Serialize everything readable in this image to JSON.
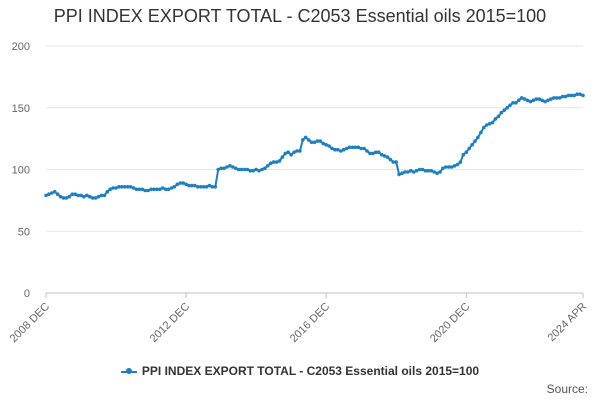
{
  "chart_data": {
    "type": "line",
    "title": "PPI INDEX EXPORT TOTAL - C2053 Essential oils 2015=100",
    "xlabel": "",
    "ylabel": "",
    "ylim": [
      0,
      200
    ],
    "y_ticks": [
      0,
      50,
      100,
      150,
      200
    ],
    "x_ticks": [
      "2008 DEC",
      "2012 DEC",
      "2016 DEC",
      "2020 DEC",
      "2024 APR"
    ],
    "x_range": [
      "2008-12",
      "2024-04"
    ],
    "grid": true,
    "legend_position": "bottom",
    "series": [
      {
        "name": "PPI INDEX EXPORT TOTAL - C2053 Essential oils 2015=100",
        "color": "#1f7fbf",
        "points": [
          [
            "2008-12",
            79
          ],
          [
            "2009-01",
            80
          ],
          [
            "2009-02",
            81
          ],
          [
            "2009-03",
            82
          ],
          [
            "2009-04",
            80
          ],
          [
            "2009-05",
            78
          ],
          [
            "2009-06",
            77
          ],
          [
            "2009-07",
            77
          ],
          [
            "2009-08",
            78
          ],
          [
            "2009-09",
            80
          ],
          [
            "2009-10",
            80
          ],
          [
            "2009-11",
            79
          ],
          [
            "2009-12",
            79
          ],
          [
            "2010-01",
            78
          ],
          [
            "2010-02",
            79
          ],
          [
            "2010-03",
            78
          ],
          [
            "2010-04",
            77
          ],
          [
            "2010-05",
            77
          ],
          [
            "2010-06",
            78
          ],
          [
            "2010-07",
            79
          ],
          [
            "2010-08",
            79
          ],
          [
            "2010-09",
            82
          ],
          [
            "2010-10",
            84
          ],
          [
            "2010-11",
            85
          ],
          [
            "2010-12",
            85
          ],
          [
            "2011-01",
            86
          ],
          [
            "2011-02",
            86
          ],
          [
            "2011-03",
            86
          ],
          [
            "2011-04",
            86
          ],
          [
            "2011-05",
            86
          ],
          [
            "2011-06",
            85
          ],
          [
            "2011-07",
            84
          ],
          [
            "2011-08",
            84
          ],
          [
            "2011-09",
            84
          ],
          [
            "2011-10",
            83
          ],
          [
            "2011-11",
            83
          ],
          [
            "2011-12",
            84
          ],
          [
            "2012-01",
            84
          ],
          [
            "2012-02",
            84
          ],
          [
            "2012-03",
            84
          ],
          [
            "2012-04",
            85
          ],
          [
            "2012-05",
            84
          ],
          [
            "2012-06",
            84
          ],
          [
            "2012-07",
            85
          ],
          [
            "2012-08",
            86
          ],
          [
            "2012-09",
            88
          ],
          [
            "2012-10",
            89
          ],
          [
            "2012-11",
            89
          ],
          [
            "2012-12",
            88
          ],
          [
            "2013-01",
            87
          ],
          [
            "2013-02",
            87
          ],
          [
            "2013-03",
            87
          ],
          [
            "2013-04",
            86
          ],
          [
            "2013-05",
            86
          ],
          [
            "2013-06",
            86
          ],
          [
            "2013-07",
            86
          ],
          [
            "2013-08",
            87
          ],
          [
            "2013-09",
            86
          ],
          [
            "2013-10",
            86
          ],
          [
            "2013-11",
            100
          ],
          [
            "2013-12",
            101
          ],
          [
            "2014-01",
            101
          ],
          [
            "2014-02",
            102
          ],
          [
            "2014-03",
            103
          ],
          [
            "2014-04",
            102
          ],
          [
            "2014-05",
            101
          ],
          [
            "2014-06",
            100
          ],
          [
            "2014-07",
            100
          ],
          [
            "2014-08",
            100
          ],
          [
            "2014-09",
            100
          ],
          [
            "2014-10",
            99
          ],
          [
            "2014-11",
            99
          ],
          [
            "2014-12",
            100
          ],
          [
            "2015-01",
            99
          ],
          [
            "2015-02",
            100
          ],
          [
            "2015-03",
            101
          ],
          [
            "2015-04",
            103
          ],
          [
            "2015-05",
            105
          ],
          [
            "2015-06",
            106
          ],
          [
            "2015-07",
            106
          ],
          [
            "2015-08",
            107
          ],
          [
            "2015-09",
            110
          ],
          [
            "2015-10",
            113
          ],
          [
            "2015-11",
            114
          ],
          [
            "2015-12",
            112
          ],
          [
            "2016-01",
            114
          ],
          [
            "2016-02",
            115
          ],
          [
            "2016-03",
            115
          ],
          [
            "2016-04",
            124
          ],
          [
            "2016-05",
            126
          ],
          [
            "2016-06",
            124
          ],
          [
            "2016-07",
            122
          ],
          [
            "2016-08",
            122
          ],
          [
            "2016-09",
            123
          ],
          [
            "2016-10",
            123
          ],
          [
            "2016-11",
            121
          ],
          [
            "2016-12",
            120
          ],
          [
            "2017-01",
            119
          ],
          [
            "2017-02",
            117
          ],
          [
            "2017-03",
            116
          ],
          [
            "2017-04",
            116
          ],
          [
            "2017-05",
            115
          ],
          [
            "2017-06",
            116
          ],
          [
            "2017-07",
            117
          ],
          [
            "2017-08",
            118
          ],
          [
            "2017-09",
            118
          ],
          [
            "2017-10",
            118
          ],
          [
            "2017-11",
            118
          ],
          [
            "2017-12",
            117
          ],
          [
            "2018-01",
            117
          ],
          [
            "2018-02",
            115
          ],
          [
            "2018-03",
            113
          ],
          [
            "2018-04",
            113
          ],
          [
            "2018-05",
            114
          ],
          [
            "2018-06",
            114
          ],
          [
            "2018-07",
            112
          ],
          [
            "2018-08",
            111
          ],
          [
            "2018-09",
            110
          ],
          [
            "2018-10",
            108
          ],
          [
            "2018-11",
            106
          ],
          [
            "2018-12",
            106
          ],
          [
            "2019-01",
            96
          ],
          [
            "2019-02",
            97
          ],
          [
            "2019-03",
            98
          ],
          [
            "2019-04",
            98
          ],
          [
            "2019-05",
            99
          ],
          [
            "2019-06",
            98
          ],
          [
            "2019-07",
            99
          ],
          [
            "2019-08",
            100
          ],
          [
            "2019-09",
            100
          ],
          [
            "2019-10",
            99
          ],
          [
            "2019-11",
            99
          ],
          [
            "2019-12",
            99
          ],
          [
            "2020-01",
            98
          ],
          [
            "2020-02",
            97
          ],
          [
            "2020-03",
            98
          ],
          [
            "2020-04",
            101
          ],
          [
            "2020-05",
            102
          ],
          [
            "2020-06",
            102
          ],
          [
            "2020-07",
            102
          ],
          [
            "2020-08",
            103
          ],
          [
            "2020-09",
            104
          ],
          [
            "2020-10",
            106
          ],
          [
            "2020-11",
            112
          ],
          [
            "2020-12",
            114
          ],
          [
            "2021-01",
            117
          ],
          [
            "2021-02",
            120
          ],
          [
            "2021-03",
            123
          ],
          [
            "2021-04",
            126
          ],
          [
            "2021-05",
            130
          ],
          [
            "2021-06",
            134
          ],
          [
            "2021-07",
            136
          ],
          [
            "2021-08",
            137
          ],
          [
            "2021-09",
            138
          ],
          [
            "2021-10",
            141
          ],
          [
            "2021-11",
            143
          ],
          [
            "2021-12",
            146
          ],
          [
            "2022-01",
            148
          ],
          [
            "2022-02",
            150
          ],
          [
            "2022-03",
            152
          ],
          [
            "2022-04",
            154
          ],
          [
            "2022-05",
            154
          ],
          [
            "2022-06",
            156
          ],
          [
            "2022-07",
            158
          ],
          [
            "2022-08",
            157
          ],
          [
            "2022-09",
            156
          ],
          [
            "2022-10",
            155
          ],
          [
            "2022-11",
            156
          ],
          [
            "2022-12",
            157
          ],
          [
            "2023-01",
            157
          ],
          [
            "2023-02",
            156
          ],
          [
            "2023-03",
            155
          ],
          [
            "2023-04",
            156
          ],
          [
            "2023-05",
            157
          ],
          [
            "2023-06",
            158
          ],
          [
            "2023-07",
            158
          ],
          [
            "2023-08",
            158
          ],
          [
            "2023-09",
            159
          ],
          [
            "2023-10",
            159
          ],
          [
            "2023-11",
            160
          ],
          [
            "2023-12",
            160
          ],
          [
            "2024-01",
            160
          ],
          [
            "2024-02",
            161
          ],
          [
            "2024-03",
            161
          ],
          [
            "2024-04",
            160
          ]
        ]
      }
    ]
  },
  "source_label": "Source:"
}
